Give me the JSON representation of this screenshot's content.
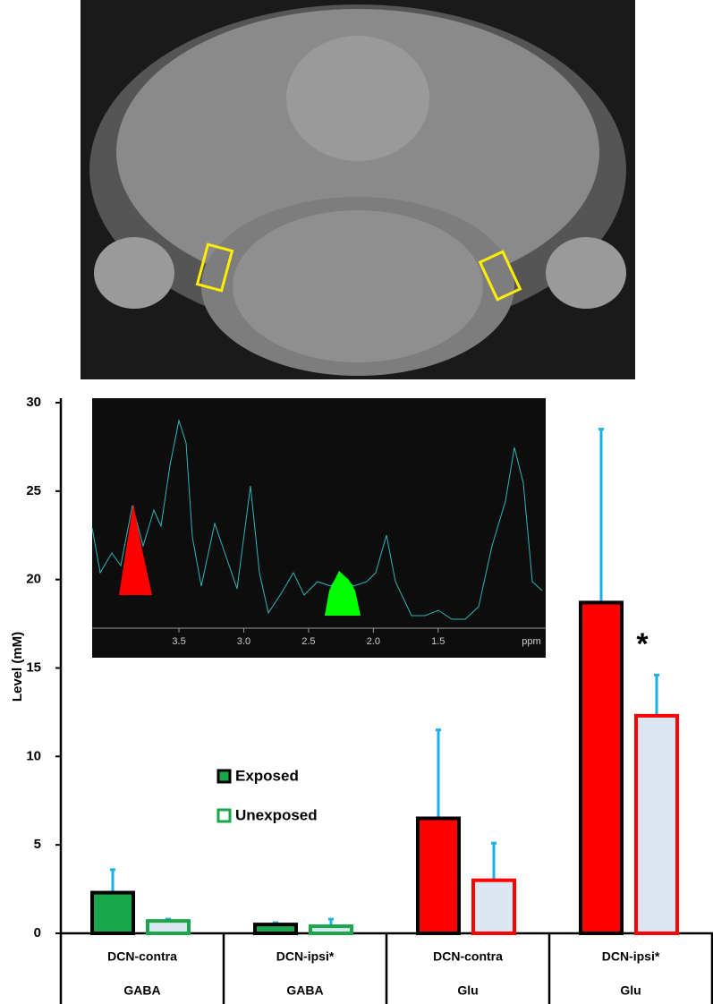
{
  "chart_data": {
    "type": "bar",
    "y_label": "Level (mM)",
    "annotation": "*",
    "categories": [
      "DCN-contra",
      "DCN-ipsi*",
      "DCN-contra",
      "DCN-ipsi*"
    ],
    "groups": [
      "GABA",
      "GABA",
      "Glu",
      "Glu"
    ],
    "series": [
      {
        "name": "Exposed",
        "color": "#1aa64a",
        "colors": [
          "#1aa64a",
          "#1aa64a",
          "#ff0000",
          "#ff0000"
        ],
        "values": [
          2.3,
          0.5,
          6.5,
          18.7
        ],
        "errors": [
          1.3,
          0.1,
          5.0,
          9.8
        ]
      },
      {
        "name": "Unexposed",
        "color": "#dce6f2",
        "colors": [
          "#1aa64a",
          "#1aa64a",
          "#ff0000",
          "#ff0000"
        ],
        "values": [
          0.7,
          0.4,
          3.0,
          12.3
        ],
        "errors": [
          0.1,
          0.4,
          2.1,
          2.3
        ]
      }
    ],
    "error_color": "#1ab0e8",
    "ylim": [
      0,
      30
    ],
    "yticks": [
      0,
      5,
      10,
      15,
      20,
      25,
      30
    ],
    "inset": {
      "xlim": [
        4.17,
        0.67
      ],
      "xticks": [
        3.5,
        {
          "value": 3,
          "label": "3.0"
        },
        2.5,
        {
          "value": 2,
          "label": "2.0"
        },
        1.5
      ],
      "x_unit": "ppm"
    }
  }
}
